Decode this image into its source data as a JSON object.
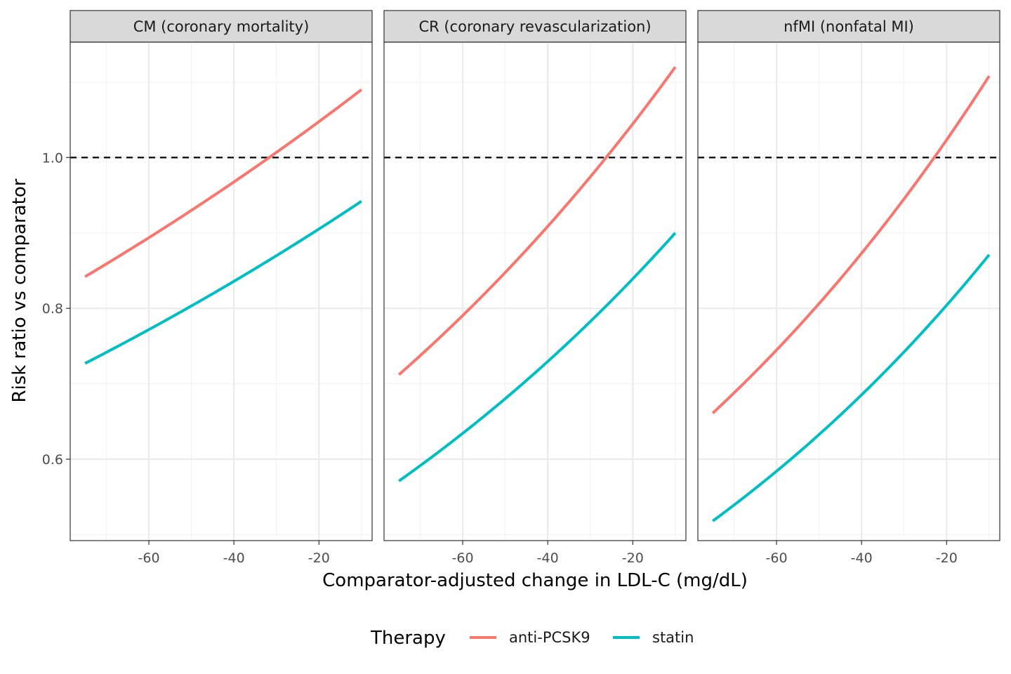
{
  "chart_data": {
    "type": "line",
    "xlabel": "Comparator-adjusted change in LDL-C (mg/dL)",
    "ylabel": "Risk ratio vs comparator",
    "xlim": [
      -78.5,
      -7.5
    ],
    "ylim": [
      0.492,
      1.153
    ],
    "x_ticks": [
      -60,
      -40,
      -20
    ],
    "x_tick_labels": [
      "-60",
      "-40",
      "-20"
    ],
    "y_ticks": [
      0.6,
      0.8,
      1.0
    ],
    "y_tick_labels": [
      "0.6",
      "0.8",
      "1.0"
    ],
    "x_minor_ticks": [
      -70,
      -50,
      -30,
      -10
    ],
    "y_minor_ticks": [
      0.5,
      0.7,
      0.9,
      1.1
    ],
    "grid": true,
    "reference_line": {
      "y": 1.0,
      "style": "dashed",
      "color": "#000000"
    },
    "legend": {
      "title": "Therapy",
      "position": "bottom",
      "entries": [
        {
          "label": "anti-PCSK9",
          "color": "#f8766d"
        },
        {
          "label": "statin",
          "color": "#00bfc4"
        }
      ]
    },
    "facets": [
      {
        "label": "CM (coronary mortality)",
        "series": [
          {
            "name": "anti-PCSK9",
            "color": "#f8766d",
            "x": [
              -75,
              -10
            ],
            "y": [
              0.842,
              1.09
            ]
          },
          {
            "name": "statin",
            "color": "#00bfc4",
            "x": [
              -75,
              -10
            ],
            "y": [
              0.727,
              0.942
            ]
          }
        ]
      },
      {
        "label": "CR (coronary revascularization)",
        "series": [
          {
            "name": "anti-PCSK9",
            "color": "#f8766d",
            "x": [
              -75,
              -10
            ],
            "y": [
              0.712,
              1.12
            ]
          },
          {
            "name": "statin",
            "color": "#00bfc4",
            "x": [
              -75,
              -10
            ],
            "y": [
              0.571,
              0.9
            ]
          }
        ]
      },
      {
        "label": "nfMI (nonfatal MI)",
        "series": [
          {
            "name": "anti-PCSK9",
            "color": "#f8766d",
            "x": [
              -75,
              -10
            ],
            "y": [
              0.661,
              1.108
            ]
          },
          {
            "name": "statin",
            "color": "#00bfc4",
            "x": [
              -75,
              -10
            ],
            "y": [
              0.518,
              0.871
            ]
          }
        ]
      }
    ]
  }
}
